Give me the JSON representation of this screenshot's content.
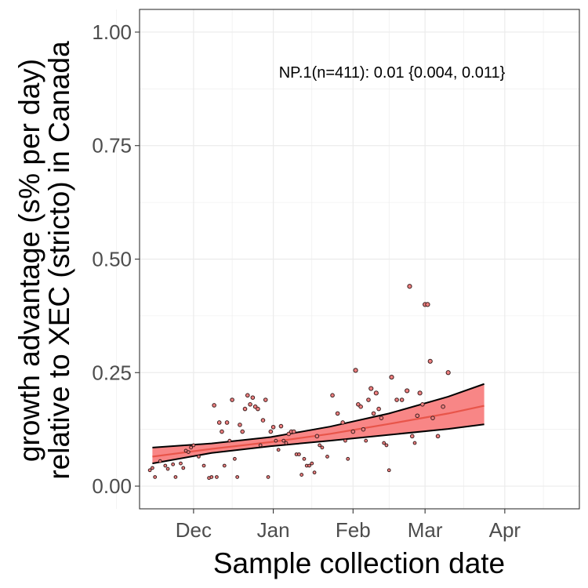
{
  "chart_data": {
    "type": "scatter",
    "xlabel": "Sample collection date",
    "ylabel_line1": "growth advantage (s% per day)",
    "ylabel_line2": "relative to XEC (stricto) in Canada",
    "annotation": "NP.1(n=411): 0.01 {0.004, 0.011}",
    "x_range": [
      "2024-11-10",
      "2025-04-30"
    ],
    "ylim": [
      -0.05,
      1.05
    ],
    "x_ticks": [
      {
        "date": "2024-12-01",
        "label": "Dec"
      },
      {
        "date": "2025-01-01",
        "label": "Jan"
      },
      {
        "date": "2025-02-01",
        "label": "Feb"
      },
      {
        "date": "2025-03-01",
        "label": "Mar"
      },
      {
        "date": "2025-04-01",
        "label": "Apr"
      }
    ],
    "y_ticks": [
      {
        "value": 0.0,
        "label": "0.00"
      },
      {
        "value": 0.25,
        "label": "0.25"
      },
      {
        "value": 0.5,
        "label": "0.50"
      },
      {
        "value": 0.75,
        "label": "0.75"
      },
      {
        "value": 1.0,
        "label": "1.00"
      }
    ],
    "grid": true,
    "colors": {
      "band_fill": "#f87f7f",
      "fit_line": "#e8554a",
      "band_edge": "#000000",
      "point_fill": "#f08080",
      "point_stroke": "#3a1f1f",
      "grid": "#ebebeb",
      "panel_border": "#333333",
      "tick_text": "#4d4d4d"
    },
    "series": [
      {
        "type": "fit",
        "x": [
          "2024-11-15",
          "2024-12-08",
          "2024-12-31",
          "2025-01-23",
          "2025-02-15",
          "2025-03-10",
          "2025-03-24"
        ],
        "fit": [
          0.065,
          0.082,
          0.097,
          0.115,
          0.137,
          0.16,
          0.177
        ],
        "lower": [
          0.05,
          0.073,
          0.088,
          0.1,
          0.113,
          0.126,
          0.136
        ],
        "upper": [
          0.085,
          0.094,
          0.108,
          0.131,
          0.16,
          0.197,
          0.225
        ]
      },
      {
        "type": "points",
        "x": [
          "2024-11-14",
          "2024-11-15",
          "2024-11-16",
          "2024-11-18",
          "2024-11-20",
          "2024-11-21",
          "2024-11-23",
          "2024-11-24",
          "2024-11-26",
          "2024-11-27",
          "2024-11-28",
          "2024-11-29",
          "2024-11-30",
          "2024-12-01",
          "2024-12-03",
          "2024-12-05",
          "2024-12-07",
          "2024-12-08",
          "2024-12-09",
          "2024-12-10",
          "2024-12-11",
          "2024-12-12",
          "2024-12-13",
          "2024-12-14",
          "2024-12-15",
          "2024-12-16",
          "2024-12-17",
          "2024-12-18",
          "2024-12-19",
          "2024-12-20",
          "2024-12-21",
          "2024-12-22",
          "2024-12-23",
          "2024-12-24",
          "2024-12-25",
          "2024-12-26",
          "2024-12-27",
          "2024-12-28",
          "2024-12-29",
          "2024-12-30",
          "2024-12-31",
          "2025-01-01",
          "2025-01-02",
          "2025-01-03",
          "2025-01-04",
          "2025-01-05",
          "2025-01-06",
          "2025-01-07",
          "2025-01-08",
          "2025-01-09",
          "2025-01-10",
          "2025-01-11",
          "2025-01-12",
          "2025-01-13",
          "2025-01-14",
          "2025-01-15",
          "2025-01-16",
          "2025-01-17",
          "2025-01-18",
          "2025-01-19",
          "2025-01-20",
          "2025-01-22",
          "2025-01-24",
          "2025-01-26",
          "2025-01-28",
          "2025-01-29",
          "2025-01-30",
          "2025-02-01",
          "2025-02-02",
          "2025-02-03",
          "2025-02-04",
          "2025-02-05",
          "2025-02-06",
          "2025-02-07",
          "2025-02-08",
          "2025-02-09",
          "2025-02-10",
          "2025-02-11",
          "2025-02-12",
          "2025-02-13",
          "2025-02-14",
          "2025-02-15",
          "2025-02-16",
          "2025-02-18",
          "2025-02-20",
          "2025-02-22",
          "2025-02-23",
          "2025-02-24",
          "2025-02-25",
          "2025-02-26",
          "2025-02-27",
          "2025-02-28",
          "2025-03-01",
          "2025-03-02",
          "2025-03-03",
          "2025-03-04",
          "2025-03-06",
          "2025-03-08",
          "2025-03-10"
        ],
        "y": [
          0.035,
          0.04,
          0.02,
          0.055,
          0.045,
          0.038,
          0.048,
          0.02,
          0.05,
          0.04,
          0.078,
          0.075,
          0.085,
          0.09,
          0.065,
          0.045,
          0.018,
          0.02,
          0.178,
          0.02,
          0.14,
          0.12,
          0.045,
          0.14,
          0.1,
          0.19,
          0.06,
          0.02,
          0.135,
          0.12,
          0.17,
          0.2,
          0.18,
          0.195,
          0.175,
          0.17,
          0.09,
          0.145,
          0.19,
          0.02,
          0.12,
          0.13,
          0.1,
          0.08,
          0.132,
          0.1,
          0.095,
          0.115,
          0.12,
          0.12,
          0.07,
          0.07,
          0.025,
          0.06,
          0.045,
          0.045,
          0.05,
          0.03,
          0.11,
          0.09,
          0.085,
          0.065,
          0.2,
          0.16,
          0.14,
          0.1,
          0.06,
          0.12,
          0.255,
          0.18,
          0.175,
          0.125,
          0.1,
          0.19,
          0.215,
          0.16,
          0.205,
          0.17,
          0.15,
          0.095,
          0.09,
          0.035,
          0.24,
          0.19,
          0.19,
          0.21,
          0.44,
          0.11,
          0.095,
          0.155,
          0.205,
          0.18,
          0.4,
          0.4,
          0.275,
          0.15,
          0.11,
          0.175,
          0.25
        ]
      }
    ]
  }
}
